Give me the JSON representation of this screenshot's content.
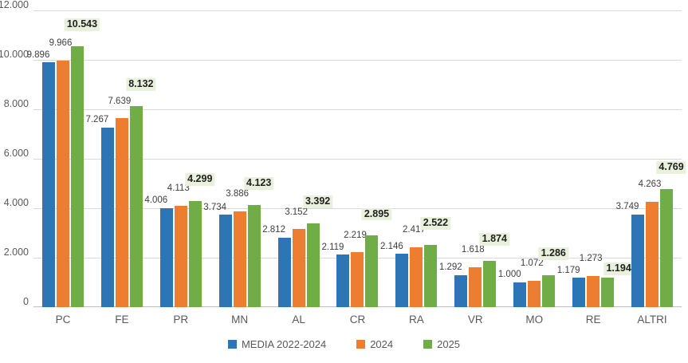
{
  "chart": {
    "background_color": "#FFFFFF",
    "gridline_color": "#D9D9D9",
    "axis_line_color": "#BFBFBF",
    "axis_label_color": "#595959",
    "value_label_color": "#404040",
    "emphasis_text_color": "#1F1F1F",
    "emphasis_bg_color": "#E9F1DD"
  },
  "chart_data": {
    "type": "bar",
    "title": "",
    "categories": [
      "PC",
      "FE",
      "PR",
      "MN",
      "AL",
      "CR",
      "RA",
      "VR",
      "MO",
      "RE",
      "ALTRI"
    ],
    "series": [
      {
        "name": "MEDIA 2022-2024",
        "color": "#2E75B6",
        "emphasized": false,
        "values": [
          9896,
          7267,
          4006,
          3734,
          2812,
          2119,
          2146,
          1292,
          1000,
          1179,
          3749
        ],
        "display_values": [
          "9.896",
          "7.267",
          "4.006",
          "3.734",
          "2.812",
          "2.119",
          "2.146",
          "1.292",
          "1.000",
          "1.179",
          "3.749"
        ]
      },
      {
        "name": "2024",
        "color": "#ED7D31",
        "emphasized": false,
        "values": [
          9966,
          7639,
          4113,
          3886,
          3152,
          2219,
          2417,
          1618,
          1072,
          1273,
          4263
        ],
        "display_values": [
          "9.966",
          "7.639",
          "4.113",
          "3.886",
          "3.152",
          "2.219",
          "2.417",
          "1.618",
          "1.072",
          "1.273",
          "4.263"
        ]
      },
      {
        "name": "2025",
        "color": "#70AD47",
        "emphasized": true,
        "values": [
          10543,
          8132,
          4299,
          4123,
          3392,
          2895,
          2522,
          1874,
          1286,
          1194,
          4769
        ],
        "display_values": [
          "10.543",
          "8.132",
          "4.299",
          "4.123",
          "3.392",
          "2.895",
          "2.522",
          "1.874",
          "1.286",
          "1.194",
          "4.769"
        ]
      }
    ],
    "y_axis": {
      "min": 0,
      "max": 12000,
      "tick_interval": 2000,
      "tick_labels": [
        "0",
        "2.000",
        "4.000",
        "6.000",
        "8.000",
        "10.000",
        "12.000"
      ]
    },
    "grid": true,
    "legend_position": "bottom",
    "legend_entries": [
      "MEDIA 2022-2024",
      "2024",
      "2025"
    ]
  }
}
